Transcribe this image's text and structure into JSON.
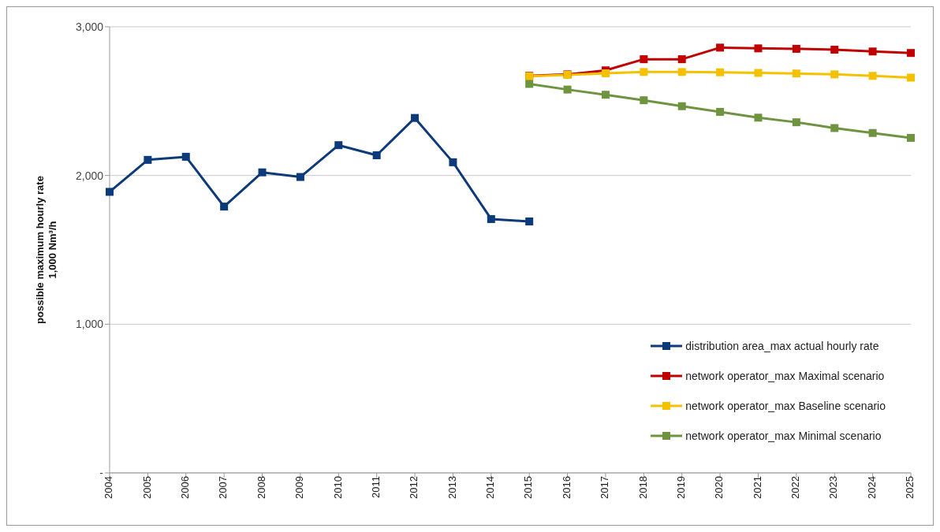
{
  "chart_data": {
    "type": "line",
    "ylabel": "possible maximum hourly rate\n1,000 Nm³/h",
    "categories": [
      "2004",
      "2005",
      "2006",
      "2007",
      "2008",
      "2009",
      "2010",
      "2011",
      "2012",
      "2013",
      "2014",
      "2015",
      "2016",
      "2017",
      "2018",
      "2019",
      "2020",
      "2021",
      "2022",
      "2023",
      "2024",
      "2025"
    ],
    "series": [
      {
        "name": "distribution area_max actual hourly rate",
        "color": "#0d3a7a",
        "values": [
          1890,
          2105,
          2126,
          1791,
          2021,
          1990,
          2204,
          2136,
          2387,
          2089,
          1707,
          1691,
          null,
          null,
          null,
          null,
          null,
          null,
          null,
          null,
          null,
          null
        ]
      },
      {
        "name": "network operator_max Maximal scenario",
        "color": "#c00000",
        "values": [
          null,
          null,
          null,
          null,
          null,
          null,
          null,
          null,
          null,
          null,
          null,
          2670,
          2680,
          2707,
          2782,
          2782,
          2860,
          2855,
          2852,
          2846,
          2834,
          2824
        ]
      },
      {
        "name": "network operator_max Baseline scenario",
        "color": "#f5c000",
        "values": [
          null,
          null,
          null,
          null,
          null,
          null,
          null,
          null,
          null,
          null,
          null,
          2667,
          2677,
          2687,
          2696,
          2696,
          2694,
          2690,
          2686,
          2680,
          2670,
          2658
        ]
      },
      {
        "name": "network operator_max Minimal scenario",
        "color": "#6f9440",
        "values": [
          null,
          null,
          null,
          null,
          null,
          null,
          null,
          null,
          null,
          null,
          null,
          2616,
          2578,
          2543,
          2506,
          2466,
          2428,
          2389,
          2358,
          2319,
          2286,
          2253
        ]
      }
    ],
    "ylim": [
      0,
      3000
    ],
    "yticks": [
      {
        "value": 0,
        "label": "-"
      },
      {
        "value": 1000,
        "label": "1,000"
      },
      {
        "value": 2000,
        "label": "2,000"
      },
      {
        "value": 3000,
        "label": "3,000"
      }
    ],
    "grid": "y",
    "legend": "bottom right",
    "marker": "square",
    "line_style": "solid"
  }
}
